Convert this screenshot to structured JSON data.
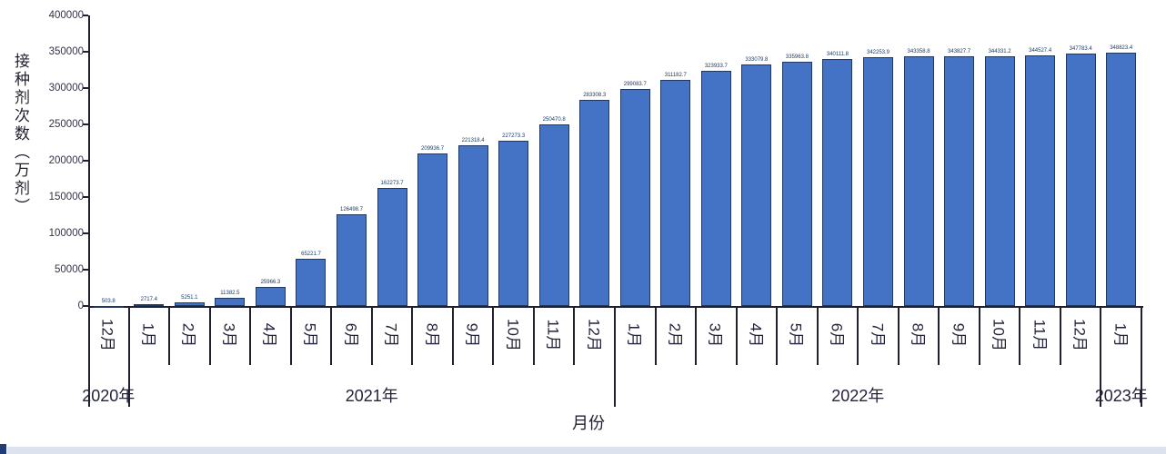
{
  "chart_data": {
    "type": "bar",
    "title": "",
    "ylabel": "接种剂次数（万剂）",
    "xlabel": "月份",
    "ylim": [
      0,
      400000
    ],
    "yticks": [
      0,
      50000,
      100000,
      150000,
      200000,
      250000,
      300000,
      350000,
      400000
    ],
    "grid": "off",
    "legend": "none",
    "bar_color": "#4472c4",
    "bar_border_color": "#1f3864",
    "categories": [
      "12月",
      "1月",
      "2月",
      "3月",
      "4月",
      "5月",
      "6月",
      "7月",
      "8月",
      "9月",
      "10月",
      "11月",
      "12月",
      "1月",
      "2月",
      "3月",
      "4月",
      "5月",
      "6月",
      "7月",
      "8月",
      "9月",
      "10月",
      "11月",
      "12月",
      "1月"
    ],
    "values": [
      503.8,
      2717.4,
      5251.1,
      11382.5,
      25966.3,
      65221.7,
      126498.7,
      162273.7,
      209936.7,
      221318.4,
      227273.3,
      250470.8,
      283308.3,
      299083.7,
      311182.7,
      323933.7,
      333079.8,
      335963.8,
      340111.8,
      342253.9,
      343358.8,
      343827.7,
      344331.2,
      344527.4,
      347783.4,
      348823.4
    ],
    "labels": [
      "503.8",
      "2717.4",
      "5251.1",
      "11382.5",
      "25966.3",
      "65221.7",
      "126498.7",
      "162273.7",
      "209936.7",
      "221318.4",
      "227273.3",
      "250470.8",
      "283308.3",
      "299083.7",
      "311182.7",
      "323933.7",
      "333079.8",
      "335963.8",
      "340111.8",
      "342253.9",
      "343358.8",
      "343827.7",
      "344331.2",
      "344527.4",
      "347783.4",
      "348823.4"
    ],
    "year_groups": [
      {
        "label": "2020年",
        "months": 1
      },
      {
        "label": "2021年",
        "months": 12
      },
      {
        "label": "2022年",
        "months": 12
      },
      {
        "label": "2023年",
        "months": 1
      }
    ]
  }
}
